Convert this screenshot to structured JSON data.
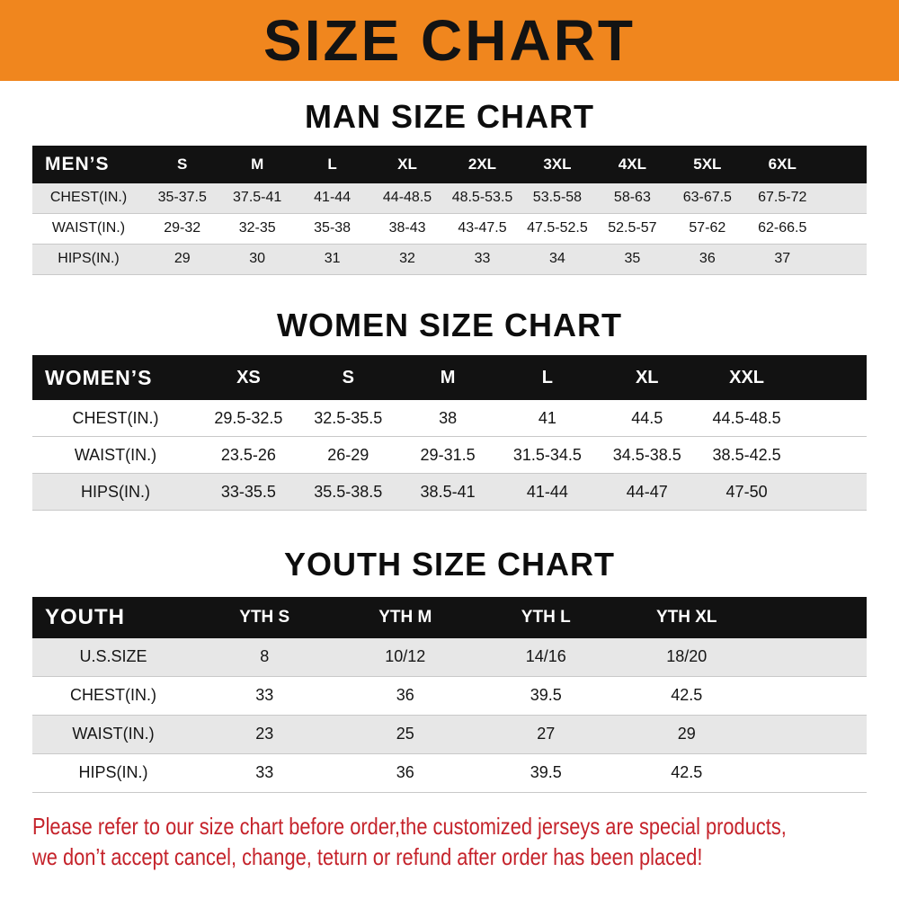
{
  "banner": {
    "title": "SIZE CHART",
    "bg_color": "#f0861e",
    "text_color": "#131313"
  },
  "sections": [
    {
      "heading": "MAN SIZE CHART",
      "table": {
        "corner": "MEN’S",
        "columns": [
          "S",
          "M",
          "L",
          "XL",
          "2XL",
          "3XL",
          "4XL",
          "5XL",
          "6XL"
        ],
        "rows": [
          {
            "label": "CHEST(IN.)",
            "values": [
              "35-37.5",
              "37.5-41",
              "41-44",
              "44-48.5",
              "48.5-53.5",
              "53.5-58",
              "58-63",
              "63-67.5",
              "67.5-72"
            ]
          },
          {
            "label": "WAIST(IN.)",
            "values": [
              "29-32",
              "32-35",
              "35-38",
              "38-43",
              "43-47.5",
              "47.5-52.5",
              "52.5-57",
              "57-62",
              "62-66.5"
            ]
          },
          {
            "label": "HIPS(IN.)",
            "values": [
              "29",
              "30",
              "31",
              "32",
              "33",
              "34",
              "35",
              "36",
              "37"
            ]
          }
        ]
      }
    },
    {
      "heading": "WOMEN SIZE CHART",
      "table": {
        "corner": "WOMEN’S",
        "columns": [
          "XS",
          "S",
          "M",
          "L",
          "XL",
          "XXL"
        ],
        "rows": [
          {
            "label": "CHEST(IN.)",
            "values": [
              "29.5-32.5",
              "32.5-35.5",
              "38",
              "41",
              "44.5",
              "44.5-48.5"
            ]
          },
          {
            "label": "WAIST(IN.)",
            "values": [
              "23.5-26",
              "26-29",
              "29-31.5",
              "31.5-34.5",
              "34.5-38.5",
              "38.5-42.5"
            ]
          },
          {
            "label": "HIPS(IN.)",
            "values": [
              "33-35.5",
              "35.5-38.5",
              "38.5-41",
              "41-44",
              "44-47",
              "47-50"
            ]
          }
        ]
      }
    },
    {
      "heading": "YOUTH SIZE CHART",
      "table": {
        "corner": "YOUTH",
        "columns": [
          "YTH S",
          "YTH M",
          "YTH L",
          "YTH XL"
        ],
        "rows": [
          {
            "label": "U.S.SIZE",
            "values": [
              "8",
              "10/12",
              "14/16",
              "18/20"
            ]
          },
          {
            "label": "CHEST(IN.)",
            "values": [
              "33",
              "36",
              "39.5",
              "42.5"
            ]
          },
          {
            "label": "WAIST(IN.)",
            "values": [
              "23",
              "25",
              "27",
              "29"
            ]
          },
          {
            "label": "HIPS(IN.)",
            "values": [
              "33",
              "36",
              "39.5",
              "42.5"
            ]
          }
        ]
      }
    }
  ],
  "footer": {
    "line1": "Please refer to our size chart before order,the customized jerseys are special products,",
    "line2": "we don’t accept cancel, change, teturn or refund after order has been placed!",
    "text_color": "#c5232b"
  },
  "colors": {
    "banner_orange": "#f0861e",
    "table_header_black": "#121212",
    "row_stripe_gray": "#e7e7e7",
    "note_red": "#c5232b"
  }
}
